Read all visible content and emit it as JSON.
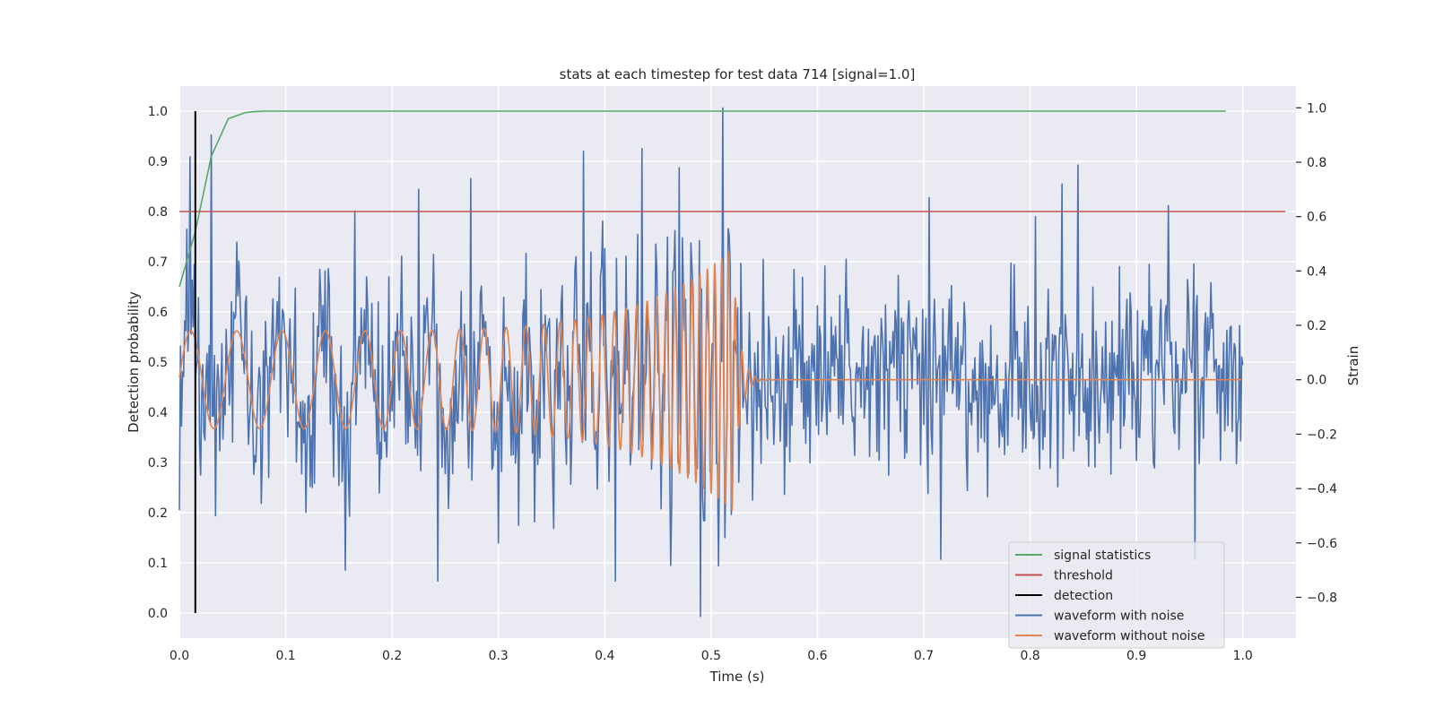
{
  "chart_data": {
    "type": "line",
    "title": "stats at each timestep for test data 714 [signal=1.0]",
    "xlabel": "Time (s)",
    "ylabel": "Detection probability",
    "y2label": "Strain",
    "xlim": [
      0.0,
      1.05
    ],
    "ylim": [
      -0.05,
      1.05
    ],
    "y2lim": [
      -0.95,
      1.08
    ],
    "xticks": [
      0.0,
      0.1,
      0.2,
      0.3,
      0.4,
      0.5,
      0.6,
      0.7,
      0.8,
      0.9,
      1.0
    ],
    "xtick_labels": [
      "0.0",
      "0.1",
      "0.2",
      "0.3",
      "0.4",
      "0.5",
      "0.6",
      "0.7",
      "0.8",
      "0.9",
      "1.0"
    ],
    "yticks": [
      0.0,
      0.1,
      0.2,
      0.3,
      0.4,
      0.5,
      0.6,
      0.7,
      0.8,
      0.9,
      1.0
    ],
    "ytick_labels": [
      "0.0",
      "0.1",
      "0.2",
      "0.3",
      "0.4",
      "0.5",
      "0.6",
      "0.7",
      "0.8",
      "0.9",
      "1.0"
    ],
    "y2ticks": [
      -0.8,
      -0.6,
      -0.4,
      -0.2,
      0.0,
      0.2,
      0.4,
      0.6,
      0.8,
      1.0
    ],
    "y2tick_labels": [
      "−0.8",
      "−0.6",
      "−0.4",
      "−0.2",
      "0.0",
      "0.2",
      "0.4",
      "0.6",
      "0.8",
      "1.0"
    ],
    "grid": true,
    "legend_position": "bottom-right",
    "series": [
      {
        "name": "signal statistics",
        "axis": "left",
        "color": "#55a868",
        "x": [
          0.0,
          0.015,
          0.03,
          0.046,
          0.062,
          0.07,
          0.08,
          0.1,
          0.2,
          0.3,
          0.4,
          0.5,
          0.6,
          0.7,
          0.8,
          0.9,
          0.984
        ],
        "y": [
          0.65,
          0.76,
          0.91,
          0.985,
          0.997,
          0.999,
          1.0,
          1.0,
          1.0,
          1.0,
          1.0,
          1.0,
          1.0,
          1.0,
          1.0,
          1.0,
          1.0
        ]
      },
      {
        "name": "threshold",
        "axis": "left",
        "color": "#c44e52",
        "x": [
          0.0,
          1.04
        ],
        "y": [
          0.8,
          0.8
        ]
      },
      {
        "name": "detection",
        "axis": "left",
        "color": "#000000",
        "x": [
          0.015,
          0.015
        ],
        "y": [
          0.0,
          1.0
        ]
      },
      {
        "name": "waveform with noise",
        "axis": "right",
        "color": "#4c72b0",
        "t_start": 0.0,
        "t_end": 1.0,
        "noise_std": 0.22,
        "peaks": [
          {
            "t": 0.0,
            "v": -0.48
          },
          {
            "t": 0.01,
            "v": 0.82
          },
          {
            "t": 0.02,
            "v": -0.35
          },
          {
            "t": 0.03,
            "v": 0.9
          },
          {
            "t": 0.034,
            "v": -0.5
          },
          {
            "t": 0.165,
            "v": 0.62
          },
          {
            "t": 0.156,
            "v": -0.7
          },
          {
            "t": 0.225,
            "v": 0.7
          },
          {
            "t": 0.243,
            "v": -0.74
          },
          {
            "t": 0.274,
            "v": 0.74
          },
          {
            "t": 0.3,
            "v": -0.6
          },
          {
            "t": 0.38,
            "v": 0.84
          },
          {
            "t": 0.41,
            "v": -0.74
          },
          {
            "t": 0.435,
            "v": 0.85
          },
          {
            "t": 0.47,
            "v": 0.78
          },
          {
            "t": 0.49,
            "v": -0.87
          },
          {
            "t": 0.511,
            "v": 1.0
          },
          {
            "t": 0.705,
            "v": 0.67
          },
          {
            "t": 0.716,
            "v": -0.66
          },
          {
            "t": 0.805,
            "v": 0.6
          },
          {
            "t": 0.83,
            "v": 0.72
          },
          {
            "t": 0.845,
            "v": 0.79
          },
          {
            "t": 0.93,
            "v": 0.64
          },
          {
            "t": 0.955,
            "v": -0.66
          }
        ]
      },
      {
        "name": "waveform without noise",
        "axis": "right",
        "color": "#dd8452",
        "chirp": {
          "t_merge": 0.52,
          "f0_hz": 23,
          "f_merge_hz": 160,
          "a0": 0.18,
          "a_merge": 0.48,
          "ringdown_s": 0.006,
          "t_end": 1.0
        }
      }
    ]
  }
}
